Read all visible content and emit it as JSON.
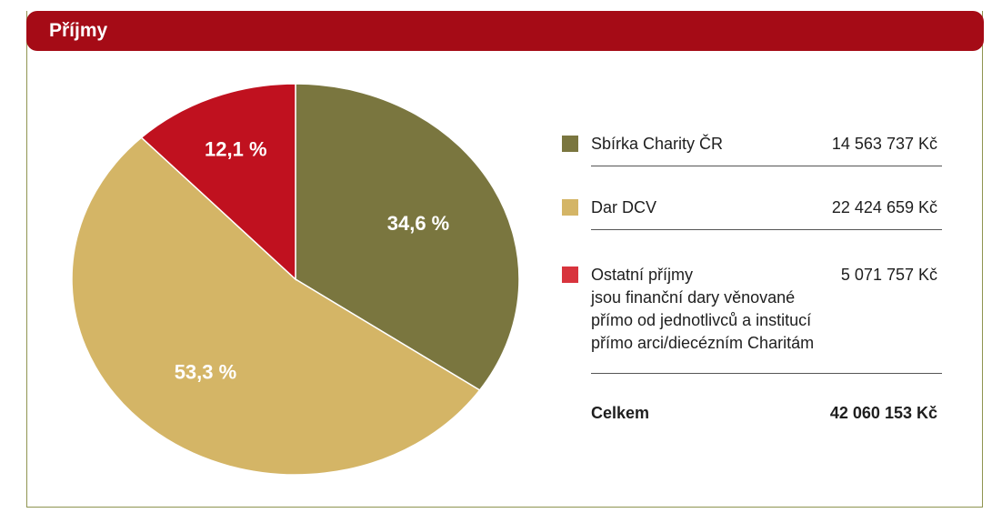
{
  "header": {
    "title": "Příjmy"
  },
  "chart_data": {
    "type": "pie",
    "categories": [
      "Sbírka Charity ČR",
      "Dar DCV",
      "Ostatní příjmy"
    ],
    "values": [
      34.6,
      53.3,
      12.1
    ],
    "value_labels": [
      "34,6 %",
      "53,3 %",
      "12,1 %"
    ],
    "colors": [
      "#7a763f",
      "#d4b566",
      "#c0111f"
    ],
    "title": "Příjmy"
  },
  "legend": {
    "items": [
      {
        "name": "Sbírka Charity ČR",
        "amount": "14 563 737 Kč",
        "color": "#7a763f"
      },
      {
        "name": "Dar DCV",
        "amount": "22 424 659 Kč",
        "color": "#d4b566"
      },
      {
        "name": "Ostatní příjmy",
        "amount": "5 071 757 Kč",
        "color": "#d8343d",
        "note": [
          "jsou finanční dary věnované",
          "přímo od jednotlivců a institucí",
          "přímo arci/diecézním Charitám"
        ]
      }
    ],
    "total_label": "Celkem",
    "total_amount": "42 060 153 Kč"
  }
}
